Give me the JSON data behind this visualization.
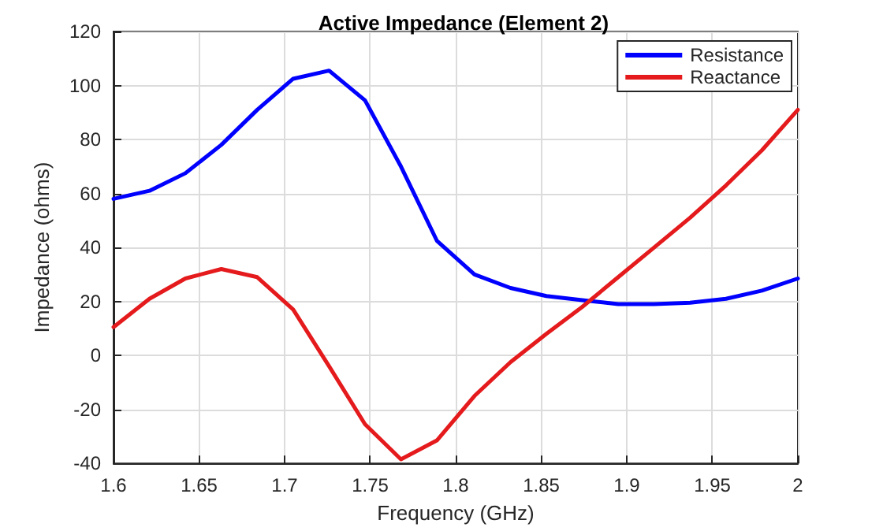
{
  "chart_data": {
    "type": "line",
    "title": "Active Impedance (Element 2)",
    "xlabel": "Frequency (GHz)",
    "ylabel": "Impedance (ohms)",
    "x": [
      1.6,
      1.621,
      1.642,
      1.663,
      1.684,
      1.705,
      1.726,
      1.747,
      1.768,
      1.789,
      1.811,
      1.832,
      1.853,
      1.874,
      1.895,
      1.916,
      1.937,
      1.958,
      1.979,
      2.0
    ],
    "series": [
      {
        "name": "Resistance",
        "color": "#0000ff",
        "values": [
          58,
          61,
          67.5,
          78,
          91,
          102.5,
          105.5,
          94.5,
          70,
          42.5,
          30,
          25,
          22,
          20.5,
          19,
          19,
          19.5,
          21,
          24,
          28.5
        ]
      },
      {
        "name": "Reactance",
        "color": "#e41a1c",
        "values": [
          10.5,
          21,
          28.5,
          32,
          29,
          17,
          -4,
          -25.5,
          -38.5,
          -31.5,
          -15,
          -2.5,
          8,
          18,
          29,
          40,
          51,
          63,
          76,
          91
        ]
      }
    ],
    "xlim": [
      1.6,
      2
    ],
    "xticks": [
      1.6,
      1.65,
      1.7,
      1.75,
      1.8,
      1.85,
      1.9,
      1.95,
      2
    ],
    "ylim": [
      -40,
      120
    ],
    "yticks": [
      -40,
      -20,
      0,
      20,
      40,
      60,
      80,
      100,
      120
    ],
    "grid": true,
    "legend": "top right",
    "marker": "none",
    "line_style": "solid"
  }
}
